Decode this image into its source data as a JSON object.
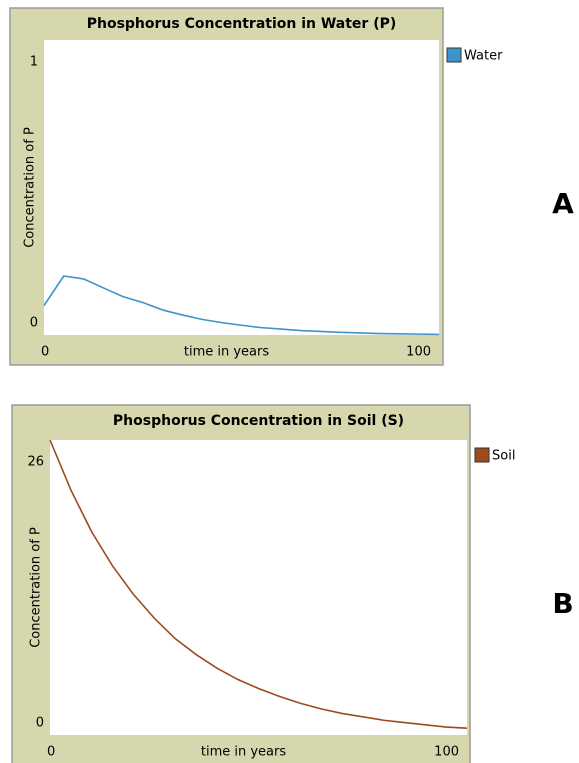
{
  "chart_data": [
    {
      "type": "line",
      "title": "Phosphorus Concentration in Water (P)",
      "panel_label": "A",
      "x_label": "time in years",
      "y_label": "Concentration of P",
      "x": [
        0,
        5,
        10,
        15,
        20,
        25,
        30,
        35,
        40,
        45,
        50,
        55,
        60,
        65,
        70,
        75,
        80,
        85,
        90,
        95,
        100
      ],
      "series": [
        {
          "name": "Water",
          "color": "#3d94c8",
          "values": [
            0.1,
            0.2,
            0.19,
            0.16,
            0.13,
            0.11,
            0.085,
            0.068,
            0.053,
            0.042,
            0.033,
            0.025,
            0.02,
            0.015,
            0.012,
            0.009,
            0.007,
            0.005,
            0.004,
            0.003,
            0.002
          ]
        }
      ],
      "xlim": [
        0,
        100
      ],
      "xticks": [
        0,
        100
      ],
      "ylim": [
        0,
        1
      ],
      "yticks": [
        0,
        1
      ]
    },
    {
      "type": "line",
      "title": "Phosphorus Concentration in Soil (S)",
      "panel_label": "B",
      "x_label": "time in years",
      "y_label": "Concentration of P",
      "x": [
        0,
        5,
        10,
        15,
        20,
        25,
        30,
        35,
        40,
        45,
        50,
        55,
        60,
        65,
        70,
        75,
        80,
        85,
        90,
        95,
        100
      ],
      "series": [
        {
          "name": "Soil",
          "color": "#9c4a1e",
          "values": [
            26,
            21.6,
            17.9,
            14.9,
            12.4,
            10.3,
            8.5,
            7.1,
            5.9,
            4.9,
            4.1,
            3.4,
            2.8,
            2.3,
            1.9,
            1.6,
            1.3,
            1.1,
            0.9,
            0.7,
            0.6
          ]
        }
      ],
      "xlim": [
        0,
        100
      ],
      "xticks": [
        0,
        100
      ],
      "ylim": [
        0,
        26
      ],
      "yticks": [
        0,
        26
      ]
    }
  ]
}
